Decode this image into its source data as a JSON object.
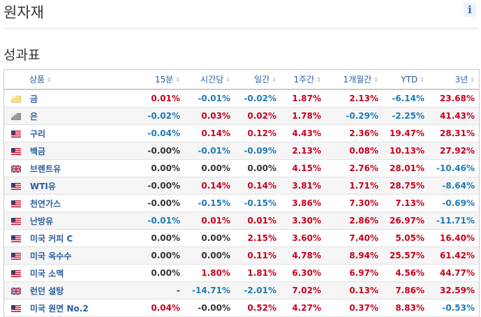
{
  "header": {
    "title": "원자재",
    "info_label": "i"
  },
  "section": {
    "title": "성과표"
  },
  "table": {
    "columns": [
      {
        "key": "name",
        "label": "상품"
      },
      {
        "key": "m15",
        "label": "15분"
      },
      {
        "key": "h1",
        "label": "시간당"
      },
      {
        "key": "d1",
        "label": "일간"
      },
      {
        "key": "w1",
        "label": "1주간"
      },
      {
        "key": "mo1",
        "label": "1개월간"
      },
      {
        "key": "ytd",
        "label": "YTD"
      },
      {
        "key": "y3",
        "label": "3년"
      }
    ],
    "rows": [
      {
        "flag": "gold",
        "name": "금",
        "values": [
          "0.01%",
          "-0.01%",
          "-0.02%",
          "1.87%",
          "2.13%",
          "-6.14%",
          "23.68%"
        ]
      },
      {
        "flag": "silver",
        "name": "은",
        "values": [
          "-0.02%",
          "0.03%",
          "0.02%",
          "1.78%",
          "-0.29%",
          "-2.25%",
          "41.43%"
        ]
      },
      {
        "flag": "us",
        "name": "구리",
        "values": [
          "-0.04%",
          "0.14%",
          "0.12%",
          "4.43%",
          "2.36%",
          "19.47%",
          "28.31%"
        ]
      },
      {
        "flag": "us",
        "name": "백금",
        "values": [
          "-0.00%",
          "-0.01%",
          "-0.09%",
          "2.13%",
          "0.08%",
          "10.13%",
          "27.92%"
        ]
      },
      {
        "flag": "uk",
        "name": "브렌트유",
        "values": [
          "0.00%",
          "0.00%",
          "0.00%",
          "4.15%",
          "2.76%",
          "28.01%",
          "-10.46%"
        ]
      },
      {
        "flag": "us",
        "name": "WTI유",
        "values": [
          "-0.00%",
          "0.14%",
          "0.14%",
          "3.81%",
          "1.71%",
          "28.75%",
          "-8.64%"
        ]
      },
      {
        "flag": "us",
        "name": "천연가스",
        "values": [
          "-0.00%",
          "-0.15%",
          "-0.15%",
          "3.86%",
          "7.30%",
          "7.13%",
          "-0.69%"
        ]
      },
      {
        "flag": "us",
        "name": "난방유",
        "values": [
          "-0.01%",
          "0.01%",
          "0.01%",
          "3.30%",
          "2.86%",
          "26.97%",
          "-11.71%"
        ]
      },
      {
        "flag": "us",
        "name": "미국 커피 C",
        "values": [
          "0.00%",
          "0.00%",
          "2.15%",
          "3.60%",
          "7.40%",
          "5.05%",
          "16.40%"
        ]
      },
      {
        "flag": "us",
        "name": "미국 옥수수",
        "values": [
          "0.00%",
          "0.00%",
          "0.11%",
          "4.78%",
          "8.94%",
          "25.57%",
          "61.42%"
        ]
      },
      {
        "flag": "us",
        "name": "미국 소맥",
        "values": [
          "0.00%",
          "1.80%",
          "1.81%",
          "6.30%",
          "6.97%",
          "4.56%",
          "44.77%"
        ]
      },
      {
        "flag": "uk",
        "name": "런던 설탕",
        "values": [
          "-",
          "-14.71%",
          "-2.01%",
          "7.02%",
          "0.13%",
          "7.86%",
          "32.59%"
        ]
      },
      {
        "flag": "us",
        "name": "미국 원면 No.2",
        "values": [
          "0.04%",
          "-0.00%",
          "0.52%",
          "4.27%",
          "0.37%",
          "8.83%",
          "-0.53%"
        ]
      }
    ]
  },
  "colors": {
    "positive": "#c8001e",
    "negative": "#1f7ab8",
    "header_text": "#2a5d9f"
  }
}
